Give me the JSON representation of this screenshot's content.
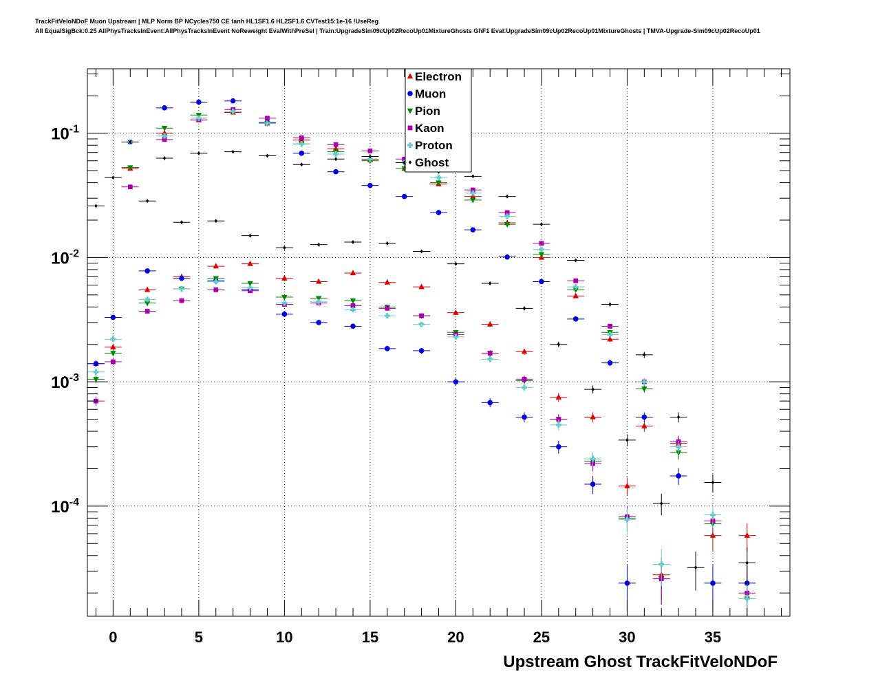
{
  "chart_data": {
    "type": "scatter",
    "title_line1": "TrackFitVeloNDoF Muon Upstream | MLP Norm BP NCycles750 CE tanh HL1SF1.6 HL2SF1.6 CVTest15:1e-16 !UseReg",
    "title_line2": "All EqualSigBck:0.25 AllPhysTracksInEvent:AllPhysTracksInEvent NoReweight EvalWithPreSel | Train:UpgradeSim09cUp02RecoUp01MixtureGhosts GhF1 Eval:UpgradeSim09cUp02RecoUp01MixtureGhosts | TMVA-Upgrade-Sim09cUp02RecoUp01",
    "xlabel": "Upstream Ghost TrackFitVeloNDoF",
    "ylabel": "",
    "xlim": [
      -1.5,
      39.5
    ],
    "ylim": [
      1.3e-05,
      0.33
    ],
    "yscale": "log",
    "grid": true,
    "legend_position": "top-center",
    "x_ticks": [
      "0",
      "5",
      "10",
      "15",
      "20",
      "25",
      "30",
      "35"
    ],
    "x_tick_values": [
      0,
      5,
      10,
      15,
      20,
      25,
      30,
      35
    ],
    "y_ticks": [
      {
        "base": "10",
        "exp": "-1",
        "value": 0.1
      },
      {
        "base": "10",
        "exp": "-2",
        "value": 0.01
      },
      {
        "base": "10",
        "exp": "-3",
        "value": 0.001
      },
      {
        "base": "10",
        "exp": "-4",
        "value": 0.0001
      }
    ],
    "series": [
      {
        "name": "Electron",
        "color": "#e00000",
        "marker": "triangle-up",
        "points": [
          [
            -1,
            0.0014
          ],
          [
            0,
            0.0019
          ],
          [
            1,
            0.052
          ],
          [
            2,
            0.0055
          ],
          [
            3,
            0.1
          ],
          [
            4,
            0.007
          ],
          [
            5,
            0.128
          ],
          [
            6,
            0.0085
          ],
          [
            7,
            0.147
          ],
          [
            8,
            0.0089
          ],
          [
            9,
            0.12
          ],
          [
            10,
            0.0068
          ],
          [
            11,
            0.088
          ],
          [
            12,
            0.0064
          ],
          [
            13,
            0.075
          ],
          [
            14,
            0.0075
          ],
          [
            15,
            0.061
          ],
          [
            16,
            0.0063
          ],
          [
            17,
            0.052
          ],
          [
            18,
            0.0058
          ],
          [
            19,
            0.039
          ],
          [
            20,
            0.0036
          ],
          [
            21,
            0.031
          ],
          [
            22,
            0.0029
          ],
          [
            23,
            0.019
          ],
          [
            24,
            0.00175
          ],
          [
            25,
            0.01
          ],
          [
            26,
            0.00075
          ],
          [
            27,
            0.0049
          ],
          [
            28,
            0.00052
          ],
          [
            29,
            0.0022
          ],
          [
            30,
            0.000145
          ],
          [
            31,
            0.00044
          ],
          [
            32,
            2.8e-05
          ],
          [
            33,
            0.00032
          ],
          [
            35,
            5.8e-05
          ],
          [
            37,
            5.8e-05
          ]
        ]
      },
      {
        "name": "Muon",
        "color": "#0000dd",
        "marker": "circle",
        "points": [
          [
            -1,
            0.0014
          ],
          [
            0,
            0.0033
          ],
          [
            1,
            0.085
          ],
          [
            2,
            0.0078
          ],
          [
            3,
            0.16
          ],
          [
            4,
            0.0068
          ],
          [
            5,
            0.178
          ],
          [
            6,
            0.0065
          ],
          [
            7,
            0.182
          ],
          [
            8,
            0.0055
          ],
          [
            9,
            0.122
          ],
          [
            10,
            0.0035
          ],
          [
            11,
            0.069
          ],
          [
            12,
            0.003
          ],
          [
            13,
            0.049
          ],
          [
            14,
            0.0028
          ],
          [
            15,
            0.038
          ],
          [
            16,
            0.00185
          ],
          [
            17,
            0.031
          ],
          [
            18,
            0.00178
          ],
          [
            19,
            0.023
          ],
          [
            20,
            0.001
          ],
          [
            21,
            0.0167
          ],
          [
            22,
            0.00068
          ],
          [
            23,
            0.0101
          ],
          [
            24,
            0.00052
          ],
          [
            25,
            0.0064
          ],
          [
            26,
            0.0003
          ],
          [
            27,
            0.0032
          ],
          [
            28,
            0.00015
          ],
          [
            29,
            0.00142
          ],
          [
            30,
            2.4e-05
          ],
          [
            31,
            0.00052
          ],
          [
            33,
            0.000175
          ],
          [
            35,
            2.4e-05
          ],
          [
            37,
            2.4e-05
          ]
        ]
      },
      {
        "name": "Pion",
        "color": "#008800",
        "marker": "triangle-down",
        "points": [
          [
            -1,
            0.00105
          ],
          [
            0,
            0.0017
          ],
          [
            1,
            0.053
          ],
          [
            2,
            0.0043
          ],
          [
            3,
            0.11
          ],
          [
            4,
            0.0056
          ],
          [
            5,
            0.14
          ],
          [
            6,
            0.0068
          ],
          [
            7,
            0.15
          ],
          [
            8,
            0.0062
          ],
          [
            9,
            0.12
          ],
          [
            10,
            0.0048
          ],
          [
            11,
            0.082
          ],
          [
            12,
            0.0047
          ],
          [
            13,
            0.071
          ],
          [
            14,
            0.0045
          ],
          [
            15,
            0.06
          ],
          [
            16,
            0.004
          ],
          [
            17,
            0.052
          ],
          [
            18,
            0.0034
          ],
          [
            19,
            0.04
          ],
          [
            20,
            0.0025
          ],
          [
            21,
            0.029
          ],
          [
            22,
            0.0017
          ],
          [
            23,
            0.0185
          ],
          [
            24,
            0.00102
          ],
          [
            25,
            0.0106
          ],
          [
            26,
            0.0005
          ],
          [
            27,
            0.0055
          ],
          [
            28,
            0.00023
          ],
          [
            29,
            0.0025
          ],
          [
            30,
            8e-05
          ],
          [
            31,
            0.00088
          ],
          [
            32,
            2.6e-05
          ],
          [
            33,
            0.00027
          ],
          [
            35,
            7.2e-05
          ],
          [
            37,
            1.8e-05
          ]
        ]
      },
      {
        "name": "Kaon",
        "color": "#aa00aa",
        "marker": "square",
        "points": [
          [
            -1,
            0.0007
          ],
          [
            0,
            0.00145
          ],
          [
            1,
            0.037
          ],
          [
            2,
            0.0037
          ],
          [
            3,
            0.089
          ],
          [
            4,
            0.0045
          ],
          [
            5,
            0.128
          ],
          [
            6,
            0.0055
          ],
          [
            7,
            0.155
          ],
          [
            8,
            0.0054
          ],
          [
            9,
            0.132
          ],
          [
            10,
            0.0042
          ],
          [
            11,
            0.092
          ],
          [
            12,
            0.0043
          ],
          [
            13,
            0.081
          ],
          [
            14,
            0.0041
          ],
          [
            15,
            0.072
          ],
          [
            16,
            0.0039
          ],
          [
            17,
            0.062
          ],
          [
            18,
            0.0034
          ],
          [
            19,
            0.052
          ],
          [
            20,
            0.0024
          ],
          [
            21,
            0.035
          ],
          [
            22,
            0.0017
          ],
          [
            23,
            0.023
          ],
          [
            24,
            0.00105
          ],
          [
            25,
            0.013
          ],
          [
            26,
            0.0005
          ],
          [
            27,
            0.0065
          ],
          [
            28,
            0.00022
          ],
          [
            29,
            0.0028
          ],
          [
            30,
            8.2e-05
          ],
          [
            31,
            0.001
          ],
          [
            32,
            2.6e-05
          ],
          [
            33,
            0.00033
          ],
          [
            35,
            7.6e-05
          ],
          [
            37,
            2e-05
          ]
        ]
      },
      {
        "name": "Proton",
        "color": "#66cccc",
        "marker": "cross",
        "points": [
          [
            -1,
            0.0012
          ],
          [
            0,
            0.0022
          ],
          [
            1,
            0.085
          ],
          [
            2,
            0.0046
          ],
          [
            3,
            0.095
          ],
          [
            4,
            0.0056
          ],
          [
            5,
            0.132
          ],
          [
            6,
            0.0064
          ],
          [
            7,
            0.15
          ],
          [
            8,
            0.0057
          ],
          [
            9,
            0.12
          ],
          [
            10,
            0.0043
          ],
          [
            11,
            0.082
          ],
          [
            12,
            0.0044
          ],
          [
            13,
            0.068
          ],
          [
            14,
            0.0038
          ],
          [
            15,
            0.062
          ],
          [
            16,
            0.0034
          ],
          [
            17,
            0.058
          ],
          [
            18,
            0.0029
          ],
          [
            19,
            0.044
          ],
          [
            20,
            0.0023
          ],
          [
            21,
            0.033
          ],
          [
            22,
            0.00152
          ],
          [
            23,
            0.0215
          ],
          [
            24,
            0.0009
          ],
          [
            25,
            0.0116
          ],
          [
            26,
            0.00045
          ],
          [
            27,
            0.0058
          ],
          [
            28,
            0.00024
          ],
          [
            29,
            0.0024
          ],
          [
            30,
            7.8e-05
          ],
          [
            31,
            0.001
          ],
          [
            32,
            3.4e-05
          ],
          [
            33,
            0.0003
          ],
          [
            35,
            8.5e-05
          ],
          [
            37,
            1.8e-05
          ]
        ]
      },
      {
        "name": "Ghost",
        "color": "#000000",
        "marker": "diamond",
        "points": [
          [
            -1,
            0.026
          ],
          [
            0,
            0.044
          ],
          [
            1,
            0.085
          ],
          [
            2,
            0.0285
          ],
          [
            3,
            0.063
          ],
          [
            4,
            0.0192
          ],
          [
            5,
            0.069
          ],
          [
            6,
            0.0197
          ],
          [
            7,
            0.071
          ],
          [
            8,
            0.015
          ],
          [
            9,
            0.066
          ],
          [
            10,
            0.012
          ],
          [
            11,
            0.056
          ],
          [
            12,
            0.0127
          ],
          [
            13,
            0.062
          ],
          [
            14,
            0.0133
          ],
          [
            15,
            0.065
          ],
          [
            16,
            0.013
          ],
          [
            17,
            0.058
          ],
          [
            18,
            0.0112
          ],
          [
            19,
            0.049
          ],
          [
            20,
            0.0089
          ],
          [
            21,
            0.045
          ],
          [
            22,
            0.0062
          ],
          [
            23,
            0.031
          ],
          [
            24,
            0.0039
          ],
          [
            25,
            0.0185
          ],
          [
            26,
            0.002
          ],
          [
            27,
            0.0095
          ],
          [
            28,
            0.00087
          ],
          [
            29,
            0.0042
          ],
          [
            30,
            0.00034
          ],
          [
            31,
            0.00165
          ],
          [
            32,
            0.000105
          ],
          [
            33,
            0.00052
          ],
          [
            34,
            3.2e-05
          ],
          [
            35,
            0.000155
          ],
          [
            37,
            3.5e-05
          ]
        ]
      }
    ]
  }
}
